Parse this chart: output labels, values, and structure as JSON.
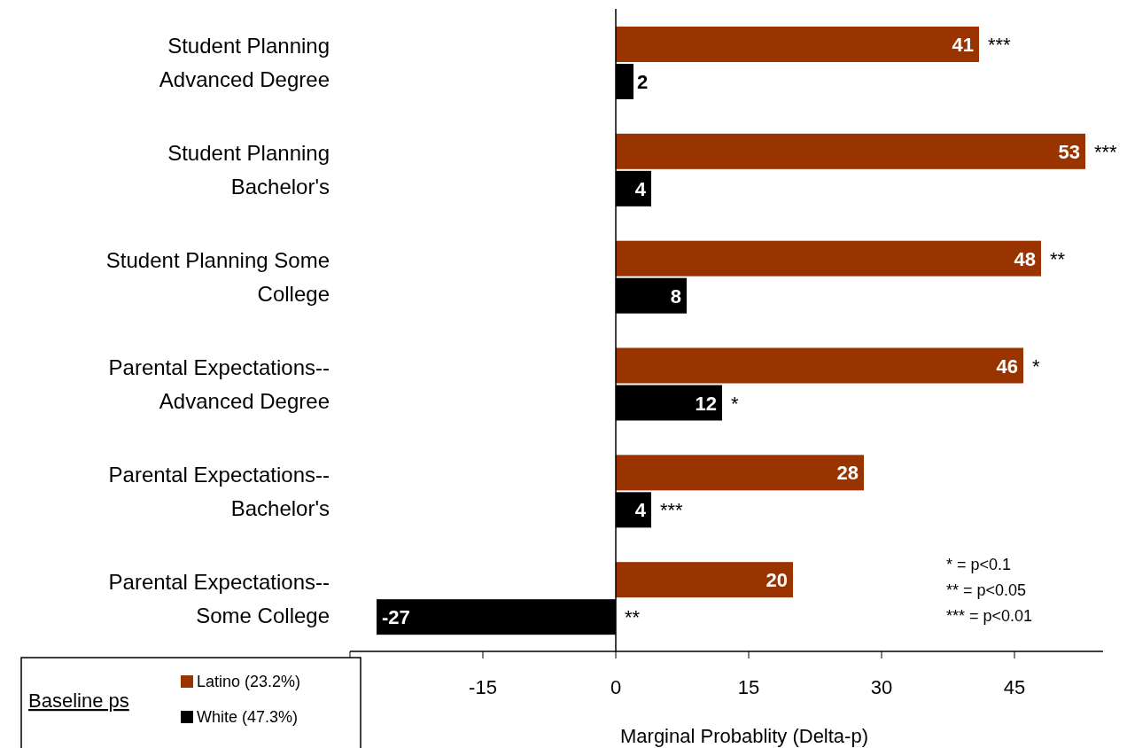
{
  "chart_data": {
    "type": "bar",
    "orientation": "horizontal",
    "categories": [
      "Student Planning\nAdvanced Degree",
      "Student Planning\nBachelor's",
      "Student Planning Some\nCollege",
      "Parental Expectations--\nAdvanced Degree",
      "Parental Expectations--\nBachelor's",
      "Parental Expectations--\nSome College"
    ],
    "series": [
      {
        "name": "Latino (23.2%)",
        "color": "#993300",
        "values": [
          41,
          53,
          48,
          46,
          28,
          20
        ]
      },
      {
        "name": "White (47.3%)",
        "color": "#000000",
        "values": [
          2,
          4,
          8,
          12,
          4,
          -27
        ]
      }
    ],
    "xlim": [
      -30,
      55
    ],
    "xticks": [
      {
        "value": -30,
        "label": null
      },
      -15,
      0,
      15,
      30,
      45
    ],
    "xlabel": "Marginal Probablity (Delta-p)",
    "legend_title": "Baseline ps",
    "legend": "bottom left",
    "data_labels": true,
    "annotations": [
      {
        "text": "***",
        "x": 41,
        "y": "Student Planning\nAdvanced Degree"
      },
      {
        "text": "***",
        "x": 53,
        "y": "Student Planning\nBachelor's"
      },
      {
        "text": "**",
        "x": 48,
        "y": "Student Planning Some\nCollege"
      },
      {
        "text": "*",
        "x": 46,
        "y": "Parental Expectations--\nAdvanced Degree"
      },
      {
        "text": "*",
        "x": 12,
        "y": "Parental Expectations--\nAdvanced Degree"
      },
      {
        "text": "***",
        "x": 4,
        "y": "Parental Expectations--\nBachelor's"
      },
      {
        "text": "**",
        "x": 0,
        "y": "Parental Expectations--\nSome College"
      },
      "* = p<0.1",
      "** = p<0.05",
      "*** = p<0.01"
    ]
  }
}
